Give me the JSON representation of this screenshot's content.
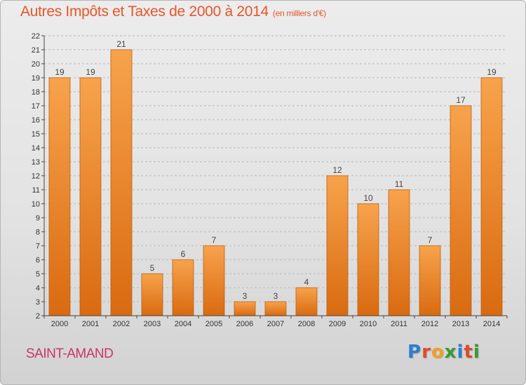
{
  "title": "Autres Impôts et Taxes de 2000 à 2014",
  "subtitle": "(en milliers d'€)",
  "city": "SAINT-AMAND",
  "logo": {
    "letters": [
      {
        "char": "P",
        "color": "#2a7fd0"
      },
      {
        "char": "r",
        "color": "#e04a2a"
      },
      {
        "char": "o",
        "color": "#f0a020"
      },
      {
        "char": "x",
        "color": "#3a9a30"
      },
      {
        "char": "i",
        "color": "#2a7fd0"
      },
      {
        "char": "t",
        "color": "#e04a2a"
      },
      {
        "char": "i",
        "color": "#3a9a30"
      }
    ]
  },
  "colors": {
    "title": "#e8562a",
    "city": "#c9356a",
    "bar_top": "#f7a34c",
    "bar_bottom": "#d96a10",
    "bar_stroke": "#c05e10",
    "grid": "#b8b8b8",
    "axis": "#444444"
  },
  "chart_data": {
    "type": "bar",
    "categories": [
      "2000",
      "2001",
      "2002",
      "2003",
      "2004",
      "2005",
      "2006",
      "2007",
      "2008",
      "2009",
      "2010",
      "2011",
      "2012",
      "2013",
      "2014"
    ],
    "values": [
      19,
      19,
      21,
      5,
      6,
      7,
      3,
      3,
      4,
      12,
      10,
      11,
      7,
      17,
      19
    ],
    "ylim": [
      2,
      22
    ],
    "yticks": [
      2,
      3,
      4,
      5,
      6,
      7,
      8,
      9,
      10,
      11,
      12,
      13,
      14,
      15,
      16,
      17,
      18,
      19,
      20,
      21,
      22
    ],
    "grid": "horizontal-dashed",
    "legend": "none",
    "data_labels": true
  }
}
